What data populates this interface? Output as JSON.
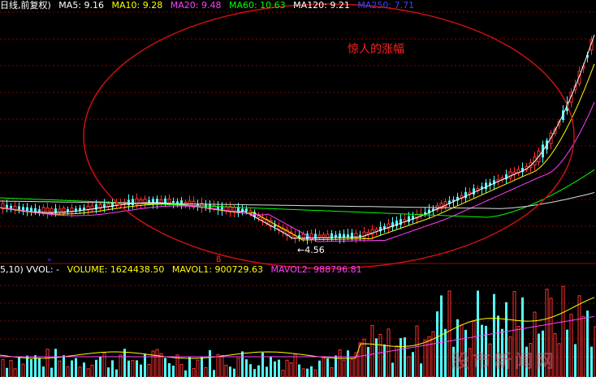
{
  "price_panel": {
    "legend": {
      "title": "日线,前复权)",
      "items": [
        {
          "label": "MA5: 9.16",
          "color": "#ffffff"
        },
        {
          "label": "MA10: 9.28",
          "color": "#ffff00"
        },
        {
          "label": "MA20: 9.48",
          "color": "#ff40ff"
        },
        {
          "label": "MA60: 10.63",
          "color": "#00ff00"
        },
        {
          "label": "MA120: 9.21",
          "color": "#ffffff"
        },
        {
          "label": "MA250: 7.71",
          "color": "#4040ff"
        }
      ]
    },
    "annotation": "惊人的涨幅",
    "low_marker": "←4.56",
    "low_value": 4.56,
    "indicator_mark": "ß"
  },
  "volume_panel": {
    "legend": {
      "prefix": "5,10) VVOL: -",
      "items": [
        {
          "label": "VOLUME: 1624438.50",
          "color": "#ffff00"
        },
        {
          "label": "MAVOL1: 900729.63",
          "color": "#ffff00"
        },
        {
          "label": "MAVOL2: 988796.81",
          "color": "#ff40ff"
        }
      ]
    }
  },
  "watermark": "股市新闻网",
  "colors": {
    "up": "#ff3232",
    "down": "#54fcfc",
    "ellipse": "#cc1010",
    "grid": "#8b0000"
  }
}
